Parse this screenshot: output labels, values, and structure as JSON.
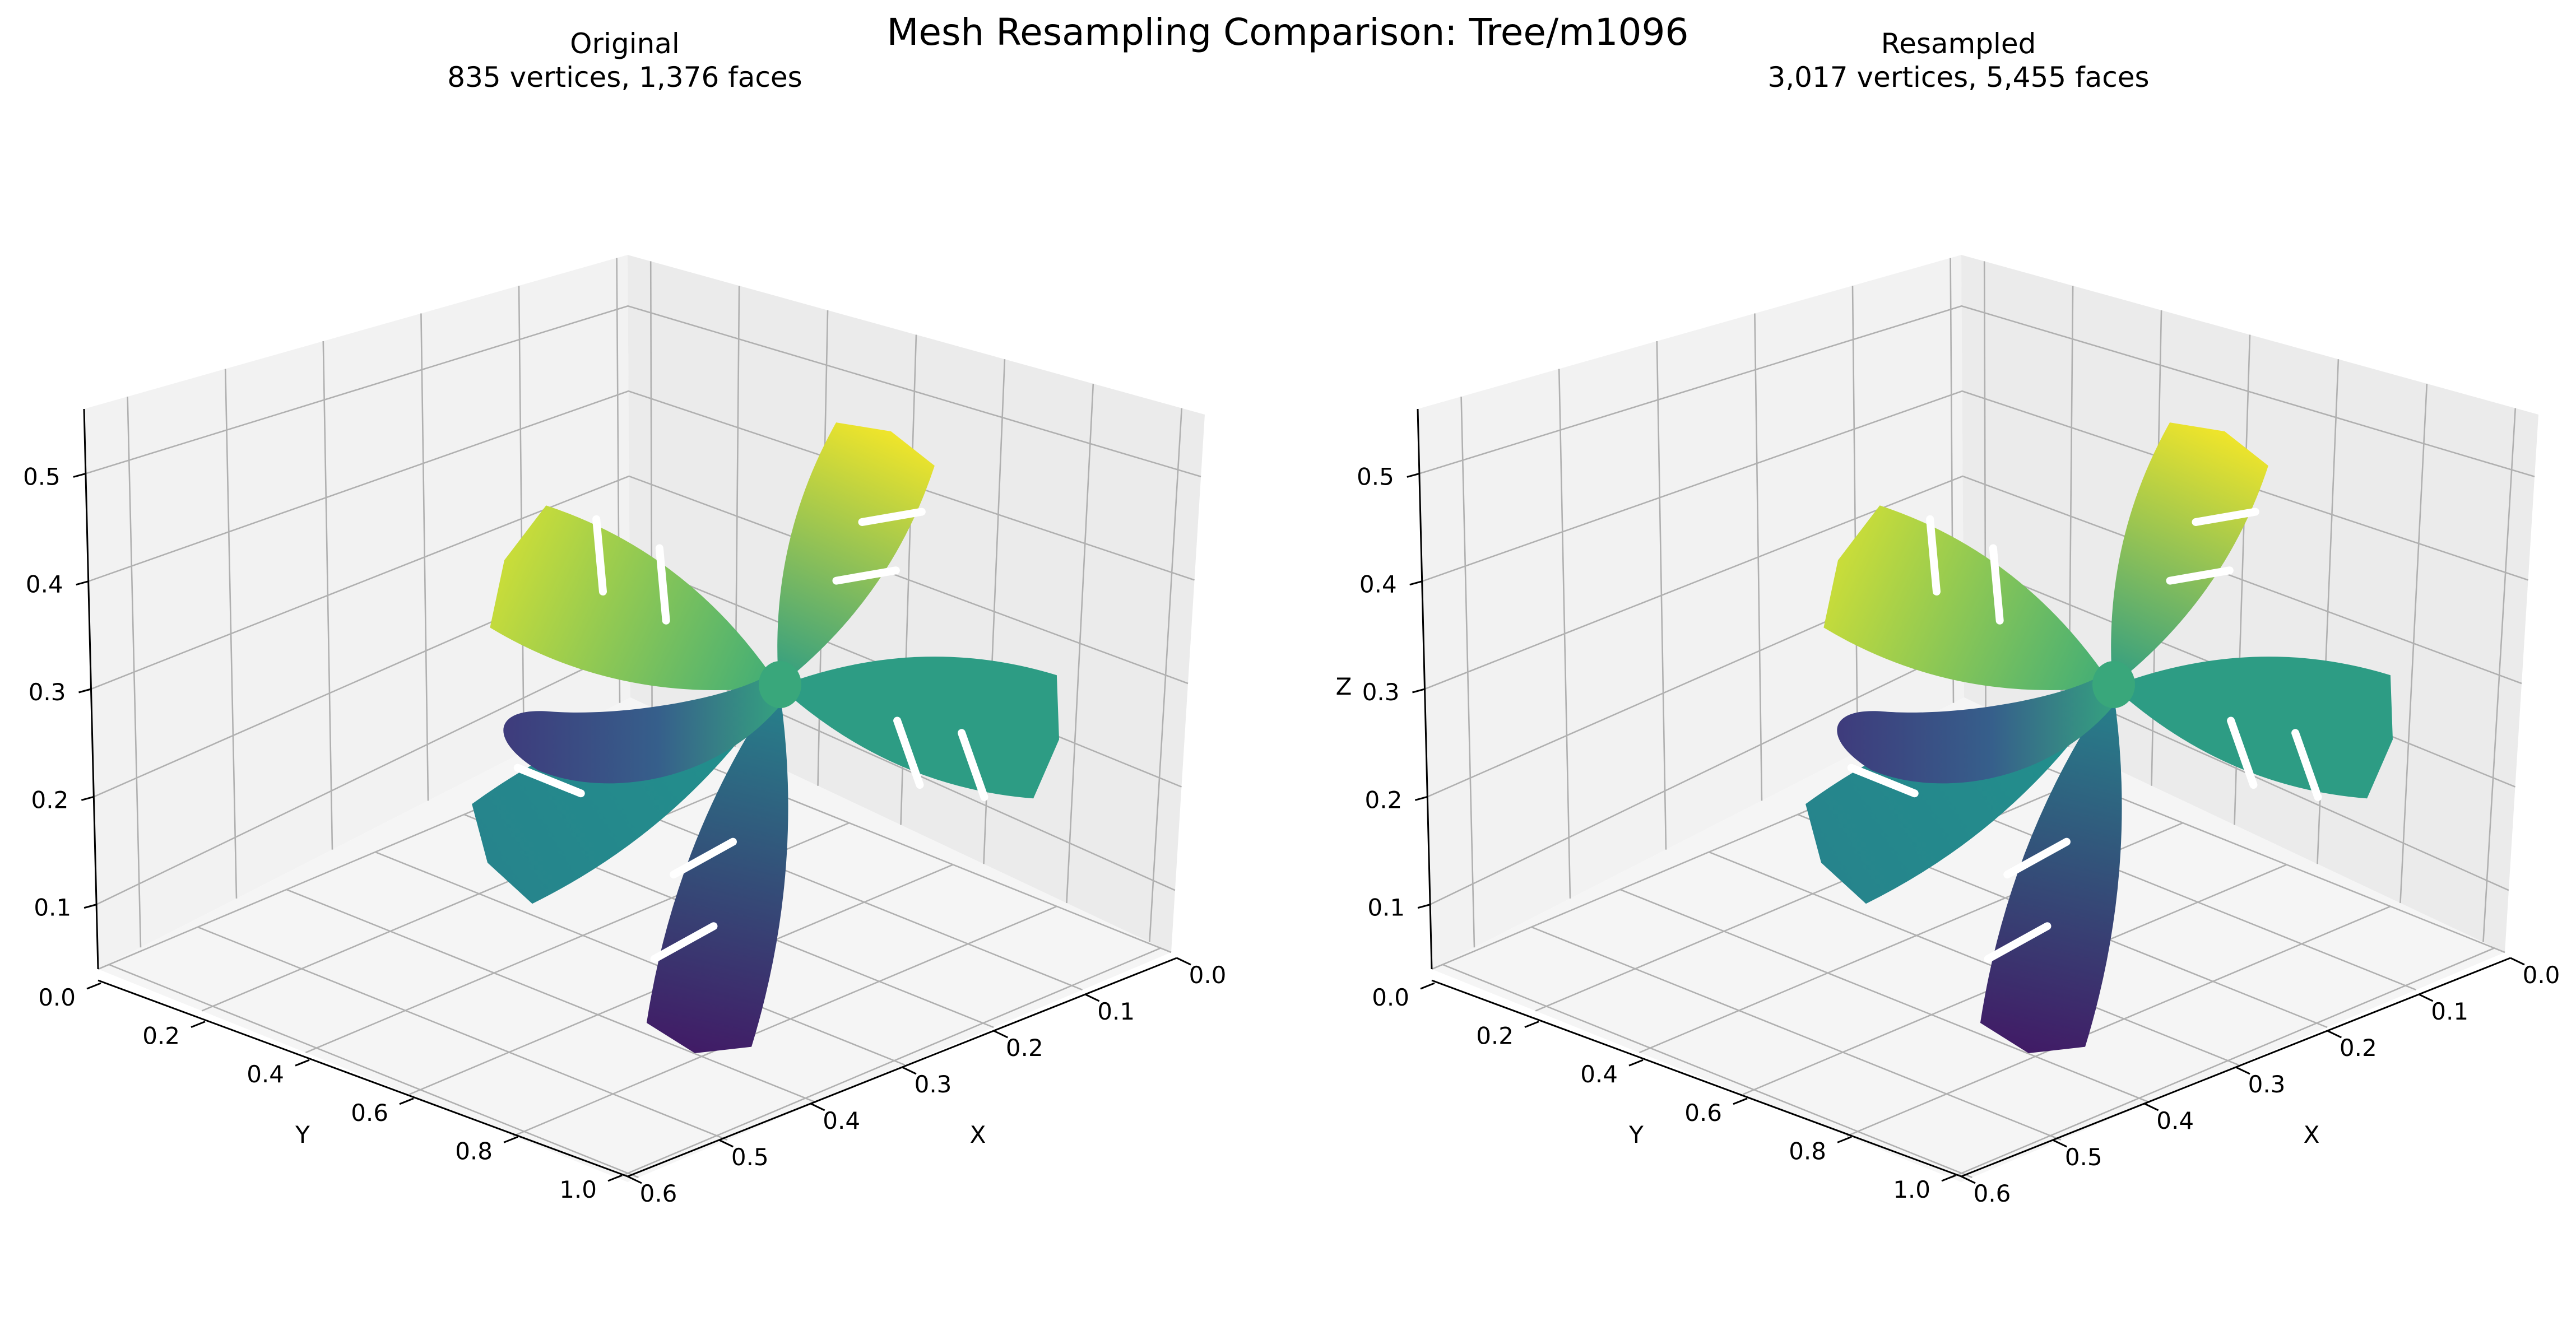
{
  "figure": {
    "title": "Mesh Resampling Comparison: Tree/m1096"
  },
  "panels": [
    {
      "id": "original",
      "title_line1": "Original",
      "title_line2": "835 vertices, 1,376 faces",
      "x_axis": {
        "label": "X",
        "ticks": [
          "0.0",
          "0.1",
          "0.2",
          "0.3",
          "0.4",
          "0.5",
          "0.6"
        ]
      },
      "y_axis": {
        "label": "Y",
        "ticks": [
          "0.0",
          "0.2",
          "0.4",
          "0.6",
          "0.8",
          "1.0"
        ]
      },
      "z_axis": {
        "label": "",
        "ticks": [
          "0.1",
          "0.2",
          "0.3",
          "0.4",
          "0.5"
        ]
      }
    },
    {
      "id": "resampled",
      "title_line1": "Resampled",
      "title_line2": "3,017 vertices, 5,455 faces",
      "x_axis": {
        "label": "X",
        "ticks": [
          "0.0",
          "0.1",
          "0.2",
          "0.3",
          "0.4",
          "0.5",
          "0.6"
        ]
      },
      "y_axis": {
        "label": "Y",
        "ticks": [
          "0.0",
          "0.2",
          "0.4",
          "0.6",
          "0.8",
          "1.0"
        ]
      },
      "z_axis": {
        "label": "Z",
        "ticks": [
          "0.1",
          "0.2",
          "0.3",
          "0.4",
          "0.5"
        ]
      }
    }
  ],
  "colormap": {
    "name": "viridis",
    "stops": [
      "#440154",
      "#3b528b",
      "#21918c",
      "#5ec962",
      "#fde725"
    ]
  }
}
